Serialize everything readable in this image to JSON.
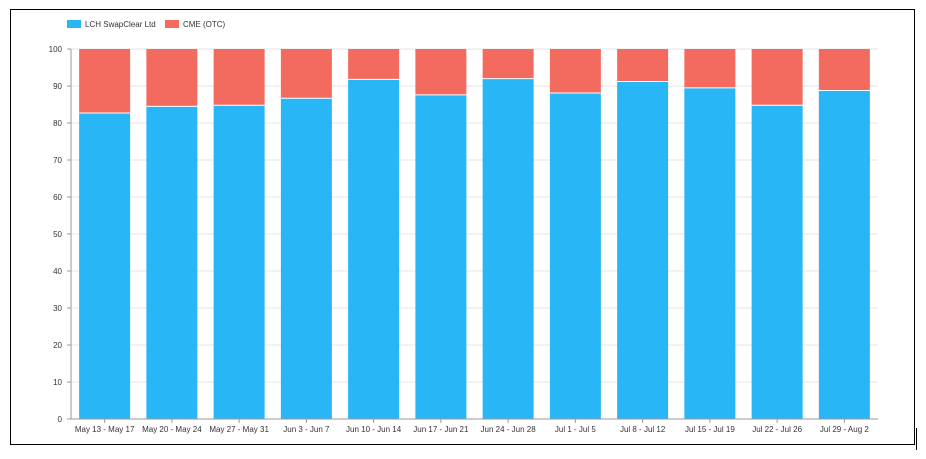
{
  "chart_data": {
    "type": "bar",
    "stacked": true,
    "categories": [
      "May 13 - May 17",
      "May 20 - May 24",
      "May 27 - May 31",
      "Jun 3 - Jun 7",
      "Jun 10 - Jun 14",
      "Jun 17 - Jun 21",
      "Jun 24 - Jun 28",
      "Jul 1 - Jul 5",
      "Jul 8 - Jul 12",
      "Jul 15 - Jul 19",
      "Jul 22 - Jul 26",
      "Jul 29 - Aug 2"
    ],
    "series": [
      {
        "name": "LCH SwapClear Ltd",
        "color": "#29b6f6",
        "values": [
          82.7,
          84.5,
          84.8,
          86.7,
          91.8,
          87.6,
          92.0,
          88.1,
          91.2,
          89.5,
          84.8,
          88.8
        ]
      },
      {
        "name": "CME (OTC)",
        "color": "#f26b5e",
        "values": [
          17.3,
          15.5,
          15.2,
          13.3,
          8.2,
          12.4,
          8.0,
          11.9,
          8.8,
          10.5,
          15.2,
          11.2
        ]
      }
    ],
    "yticks": [
      0,
      10,
      20,
      30,
      40,
      50,
      60,
      70,
      80,
      90,
      100
    ],
    "ylim": [
      0,
      100
    ],
    "grid": true,
    "legend_position": "top-left",
    "title": "",
    "xlabel": "",
    "ylabel": ""
  }
}
